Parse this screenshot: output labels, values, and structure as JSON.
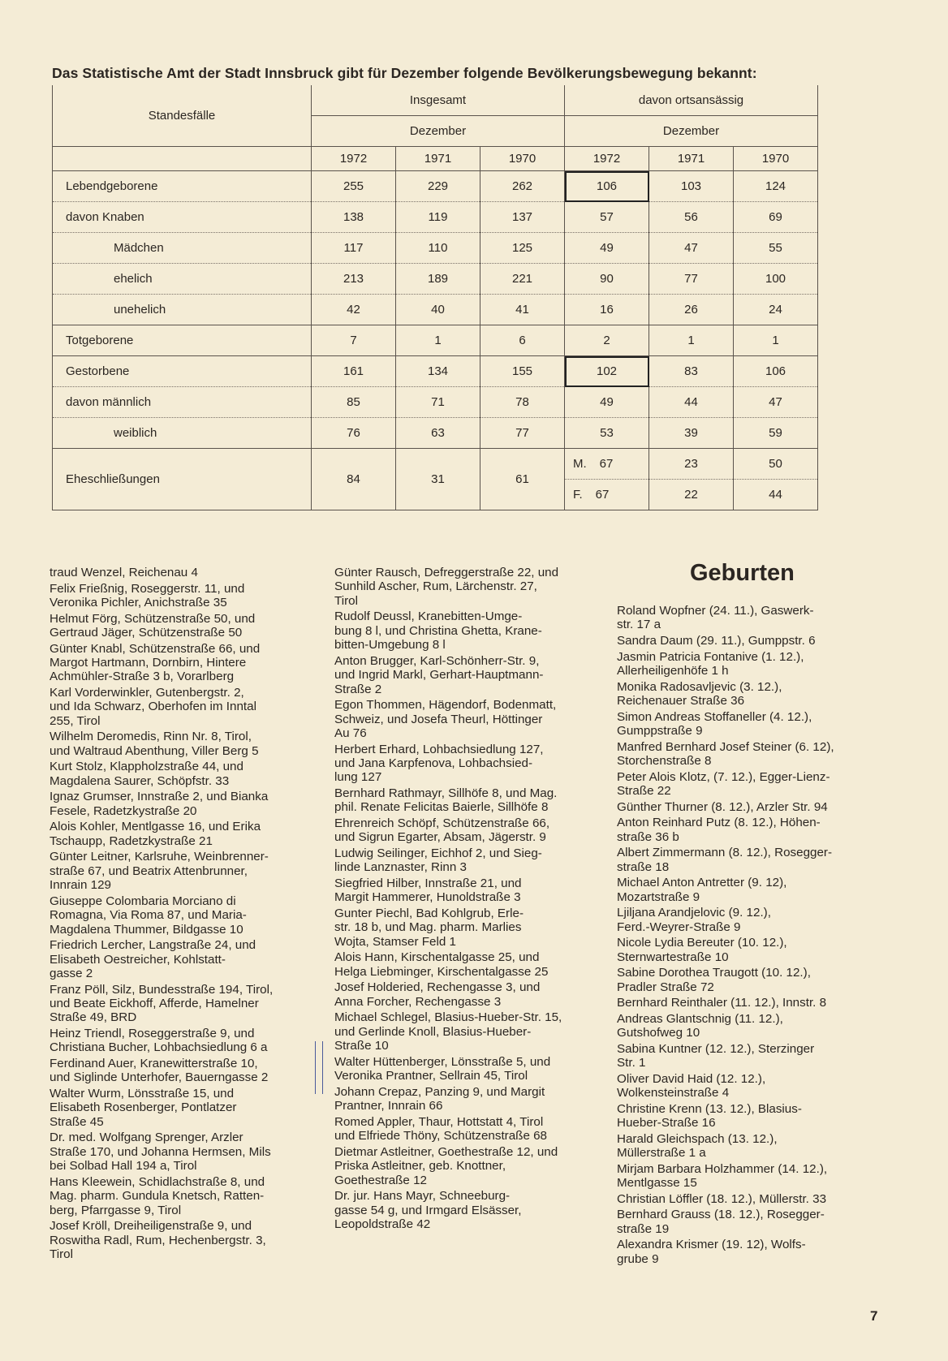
{
  "title": "Das Statistische Amt der Stadt Innsbruck gibt für Dezember folgende Bevölkerungsbewegung bekannt:",
  "table": {
    "corner_header": "Standesfälle",
    "group_headers": [
      "Insgesamt",
      "davon ortsansässig"
    ],
    "month_header": "Dezember",
    "years": [
      "1972",
      "1971",
      "1970",
      "1972",
      "1971",
      "1970"
    ],
    "rows": [
      {
        "label": "Lebendgeborene",
        "values": [
          "255",
          "229",
          "262",
          "106",
          "103",
          "124"
        ]
      },
      {
        "label": "davon  Knaben",
        "values": [
          "138",
          "119",
          "137",
          "57",
          "56",
          "69"
        ]
      },
      {
        "label": "Mädchen",
        "values": [
          "117",
          "110",
          "125",
          "49",
          "47",
          "55"
        ]
      },
      {
        "label": "ehelich",
        "values": [
          "213",
          "189",
          "221",
          "90",
          "77",
          "100"
        ]
      },
      {
        "label": "unehelich",
        "values": [
          "42",
          "40",
          "41",
          "16",
          "26",
          "24"
        ]
      },
      {
        "label": "Totgeborene",
        "values": [
          "7",
          "1",
          "6",
          "2",
          "1",
          "1"
        ]
      },
      {
        "label": "Gestorbene",
        "values": [
          "161",
          "134",
          "155",
          "102",
          "83",
          "106"
        ]
      },
      {
        "label": "davon  männlich",
        "values": [
          "85",
          "71",
          "78",
          "49",
          "44",
          "47"
        ]
      },
      {
        "label": "weiblich",
        "values": [
          "76",
          "63",
          "77",
          "53",
          "39",
          "59"
        ]
      }
    ],
    "marriages": {
      "label": "Eheschließungen",
      "totals": [
        "84",
        "31",
        "61"
      ],
      "local_rows": [
        {
          "prefix": "M.",
          "values": [
            "67",
            "23",
            "50"
          ]
        },
        {
          "prefix": "F.",
          "values": [
            "67",
            "22",
            "44"
          ]
        }
      ]
    }
  },
  "column1": [
    "traud Wenzel, Reichenau 4",
    "Felix Frießnig, Roseggerstr. 11, und\nVeronika Pichler, Anichstraße 35",
    "Helmut Förg, Schützenstraße 50, und\nGertraud Jäger, Schützenstraße 50",
    "Günter Knabl, Schützenstraße 66, und\nMargot Hartmann, Dornbirn, Hintere\nAchmühler-Straße 3 b, Vorarlberg",
    "Karl Vorderwinkler, Gutenbergstr. 2,\nund Ida Schwarz, Oberhofen im Inntal\n255, Tirol",
    "Wilhelm Deromedis, Rinn Nr. 8, Tirol,\nund Waltraud Abenthung, Viller Berg 5",
    "Kurt Stolz, Klappholzstraße 44, und\nMagdalena Saurer, Schöpfstr. 33",
    "Ignaz Grumser, Innstraße 2, und Bianka\nFesele, Radetzkystraße 20",
    "Alois Kohler, Mentlgasse 16, und Erika\nTschaupp, Radetzkystraße 21",
    "Günter Leitner, Karlsruhe, Weinbrenner-\nstraße 67, und Beatrix Attenbrunner,\nInnrain 129",
    "Giuseppe Colombaria Morciano di\nRomagna, Via Roma 87, und Maria-\nMagdalena Thummer, Bildgasse 10",
    "Friedrich Lercher, Langstraße 24, und\nElisabeth Oestreicher, Kohlstatt-\ngasse 2",
    "Franz Pöll, Silz, Bundesstraße 194, Tirol,\nund Beate Eickhoff, Afferde, Hamelner\nStraße 49, BRD",
    "Heinz Triendl, Roseggerstraße 9, und\nChristiana Bucher, Lohbachsiedlung 6 a",
    "Ferdinand Auer, Kranewitterstraße 10,\nund Siglinde Unterhofer, Bauerngasse 2",
    "Walter Wurm, Lönsstraße 15, und\nElisabeth Rosenberger, Pontlatzer\nStraße 45",
    "Dr. med. Wolfgang Sprenger, Arzler\nStraße 170, und Johanna Hermsen, Mils\nbei Solbad Hall 194 a, Tirol",
    "Hans Kleewein, Schidlachstraße 8, und\nMag. pharm. Gundula Knetsch, Ratten-\nberg, Pfarrgasse 9, Tirol",
    "Josef Kröll, Dreiheiligenstraße 9, und\nRoswitha Radl, Rum, Hechenbergstr. 3,\nTirol"
  ],
  "column2": [
    "Günter Rausch, Defreggerstraße 22, und\nSunhild Ascher, Rum, Lärchenstr. 27,\nTirol",
    "Rudolf Deussl, Kranebitten-Umge-\nbung 8 l, und Christina Ghetta, Krane-\nbitten-Umgebung 8 l",
    "Anton Brugger, Karl-Schönherr-Str. 9,\nund Ingrid Markl, Gerhart-Hauptmann-\nStraße 2",
    "Egon Thommen, Hägendorf, Bodenmatt,\nSchweiz, und Josefa Theurl, Höttinger\nAu 76",
    "Herbert Erhard, Lohbachsiedlung 127,\nund Jana Karpfenova, Lohbachsied-\nlung 127",
    "Bernhard Rathmayr, Sillhöfe 8, und Mag.\nphil. Renate Felicitas Baierle, Sillhöfe 8",
    "Ehrenreich Schöpf, Schützenstraße 66,\nund Sigrun Egarter, Absam, Jägerstr. 9",
    "Ludwig Seilinger, Eichhof 2, und Sieg-\nlinde Lanznaster, Rinn 3",
    "Siegfried Hilber, Innstraße 21, und\nMargit Hammerer, Hunoldstraße 3",
    "Gunter Piechl, Bad Kohlgrub, Erle-\nstr. 18 b, und Mag. pharm. Marlies\nWojta, Stamser Feld 1",
    "Alois Hann, Kirschentalgasse 25, und\nHelga Liebminger, Kirschentalgasse 25",
    "Josef Holderied, Rechengasse 3, und\nAnna Forcher, Rechengasse 3",
    "Michael Schlegel, Blasius-Hueber-Str. 15,\nund Gerlinde Knoll, Blasius-Hueber-\nStraße 10",
    "Walter Hüttenberger, Lönsstraße 5, und\nVeronika Prantner, Sellrain 45, Tirol",
    "Johann Crepaz, Panzing 9, und Margit\nPrantner, Innrain 66",
    "Romed Appler, Thaur, Hottstatt 4, Tirol\nund Elfriede Thöny, Schützenstraße 68",
    "Dietmar Astleitner, Goethestraße 12, und\nPriska Astleitner, geb. Knottner,\nGoethestraße 12",
    "Dr. jur. Hans Mayr, Schneeburg-\ngasse 54 g, und Irmgard Elsässer,\nLeopoldstraße 42"
  ],
  "births_heading": "Geburten",
  "column3": [
    "Roland Wopfner (24. 11.), Gaswerk-\nstr. 17 a",
    "Sandra Daum (29. 11.), Gumppstr. 6",
    "Jasmin Patricia Fontanive (1. 12.),\nAllerheiligenhöfe 1 h",
    "Monika Radosavljevic (3. 12.),\nReichenauer Straße 36",
    "Simon Andreas Stoffaneller (4. 12.),\nGumppstraße 9",
    "Manfred Bernhard Josef Steiner (6. 12),\nStorchenstraße 8",
    "Peter Alois Klotz, (7. 12.), Egger-Lienz-\nStraße 22",
    "Günther Thurner (8. 12.), Arzler Str. 94",
    "Anton Reinhard Putz (8. 12.), Höhen-\nstraße 36 b",
    "Albert Zimmermann (8. 12.), Rosegger-\nstraße 18",
    "Michael Anton Antretter (9. 12),\nMozartstraße 9",
    "Ljiljana Arandjelovic (9. 12.),\nFerd.-Weyrer-Straße 9",
    "Nicole Lydia Bereuter (10. 12.),\nSternwartestraße 10",
    "Sabine Dorothea Traugott (10. 12.),\nPradler Straße 72",
    "Bernhard Reinthaler (11. 12.), Innstr. 8",
    "Andreas Glantschnig (11. 12.),\nGutshofweg 10",
    "Sabina Kuntner (12. 12.), Sterzinger\nStr. 1",
    "Oliver David Haid (12. 12.),\nWolkensteinstraße 4",
    "Christine Krenn (13. 12.), Blasius-\nHueber-Straße 16",
    "Harald Gleichspach (13. 12.),\nMüllerstraße 1 a",
    "Mirjam Barbara Holzhammer (14. 12.),\nMentlgasse 15",
    "Christian Löffler (18. 12.), Müllerstr. 33",
    "Bernhard Grauss (18. 12.), Rosegger-\nstraße 19",
    "Alexandra Krismer (19. 12), Wolfs-\ngrube 9"
  ],
  "page_number": "7"
}
